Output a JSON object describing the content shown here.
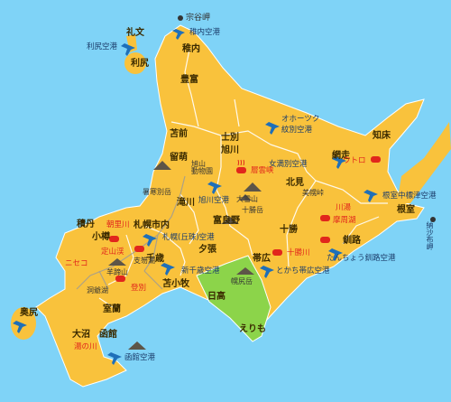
{
  "map": {
    "colors": {
      "sea": "#7fd3f7",
      "land": "#f9c23c",
      "highlight_region": "#8cd44a",
      "border": "#ffffff",
      "airport": "#1e6fb9",
      "onsen": "#e1261c"
    },
    "labels": {
      "soya": "宗谷岬",
      "rebun": "礼文",
      "rishiri": "利尻",
      "rishiri_airport": "利尻空港",
      "wakkanai_airport": "稚内空港",
      "wakkanai": "稚内",
      "toyotomi": "豊富",
      "okhotsk_airport_1": "オホーツク",
      "okhotsk_airport_2": "紋別空港",
      "shiretoko": "知床",
      "utoro": "ウトロ",
      "memanbetsu_airport": "女満別空港",
      "abashiri": "網走",
      "tomamae": "苫前",
      "rumoi": "留萌",
      "shibetsu": "士別",
      "asahikawa": "旭川",
      "zoo": "旭山\n動物園",
      "sounkyo": "層雲峡",
      "daisetsu": "大雪山",
      "tokachidake": "十勝岳",
      "kitami": "北見",
      "bihoro": "美幌峠",
      "kawayu": "川湯",
      "mashu": "摩周湖",
      "nemuro_airport": "根室中標津空港",
      "nemuro": "根室",
      "shokanbetsu": "暑寒別岳",
      "takikawa": "滝川",
      "asahikawa_airport": "旭川空港",
      "furano": "富良野",
      "akan": "阿寒湖",
      "shakotan": "積丹",
      "asarigawa": "朝里川",
      "otaru": "小樽",
      "sapporo": "札幌市内",
      "okadama_airport": "札幌(丘珠)空港",
      "yubari": "夕張",
      "tokachi": "十勝",
      "kushiro": "釧路",
      "tancho_airport": "たんちょう釧路空港",
      "jozankei": "定山渓",
      "niseko": "ニセコ",
      "yoteizan": "羊蹄山",
      "shikotsu": "支笏湖",
      "chitose": "千歳",
      "toya": "洞爺湖",
      "noboribetsu": "登別",
      "new_chitose_airport": "新千歳空港",
      "tomakomai": "苫小牧",
      "obihiro": "帯広",
      "tokachigawa": "十勝川",
      "tokachi_obihiro_airport": "とかち帯広空港",
      "horoshiridake": "幌尻岳",
      "hidaka": "日高",
      "erimo": "えりも",
      "muroran": "室蘭",
      "okushiri": "奥尻",
      "onuma": "大沼",
      "yunokawa": "湯の川",
      "hakodate": "函館",
      "hakodate_airport": "函館空港",
      "northern_islands": "納沙布岬"
    }
  }
}
